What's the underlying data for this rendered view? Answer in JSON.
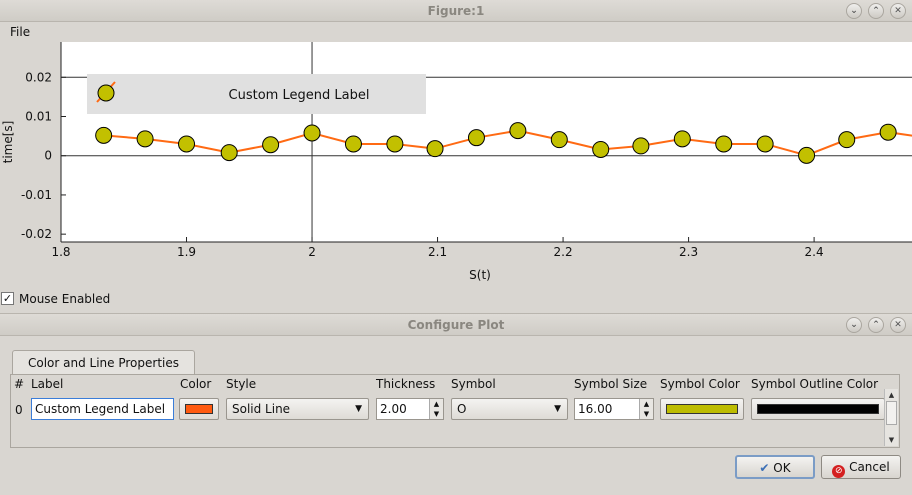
{
  "window": {
    "title": "Figure:1"
  },
  "menu": {
    "file": "File"
  },
  "chart_data": {
    "type": "line",
    "x": [
      1.834,
      1.867,
      1.9,
      1.934,
      1.967,
      2.0,
      2.033,
      2.066,
      2.098,
      2.131,
      2.164,
      2.197,
      2.23,
      2.262,
      2.295,
      2.328,
      2.361,
      2.394,
      2.426,
      2.459,
      2.492
    ],
    "series": [
      {
        "name": "Custom Legend Label",
        "values": [
          0.0052,
          0.0043,
          0.003,
          0.0008,
          0.0028,
          0.0058,
          0.003,
          0.003,
          0.0018,
          0.0046,
          0.0064,
          0.0041,
          0.0016,
          0.0025,
          0.0043,
          0.003,
          0.003,
          0.0001,
          0.0041,
          0.006,
          0.0045
        ],
        "line_color": "#ff6a13",
        "marker_color": "#c2c000",
        "marker_edge": "#000000",
        "marker": "o"
      }
    ],
    "xlabel": "S(t)",
    "ylabel": "time[s]",
    "xlim": [
      1.8,
      2.478
    ],
    "ylim": [
      -0.022,
      0.029
    ],
    "xticks": [
      "1.8",
      "1.9",
      "2",
      "2.1",
      "2.2",
      "2.3",
      "2.4"
    ],
    "yticks": [
      "0.02",
      "0.01",
      "0",
      "-0.01",
      "-0.02"
    ],
    "grid": true,
    "legend_placement": "top-left"
  },
  "mouse": {
    "label": "Mouse Enabled",
    "checked": "✓"
  },
  "dialog": {
    "title": "Configure Plot",
    "tab": "Color and Line Properties",
    "headers": {
      "index": "#",
      "label": "Label",
      "color": "Color",
      "style": "Style",
      "thickness": "Thickness",
      "symbol": "Symbol",
      "symbol_size": "Symbol Size",
      "symbol_color": "Symbol Color",
      "outline_color": "Symbol Outline Color"
    },
    "row": {
      "index": "0",
      "label": "Custom Legend Label",
      "color": "#ff5a10",
      "style": "Solid Line",
      "thickness": "2.00",
      "symbol": "O",
      "symbol_size": "16.00",
      "symbol_color": "#bdbc00",
      "outline_color": "#000000"
    },
    "ok": "OK",
    "cancel": "Cancel"
  }
}
